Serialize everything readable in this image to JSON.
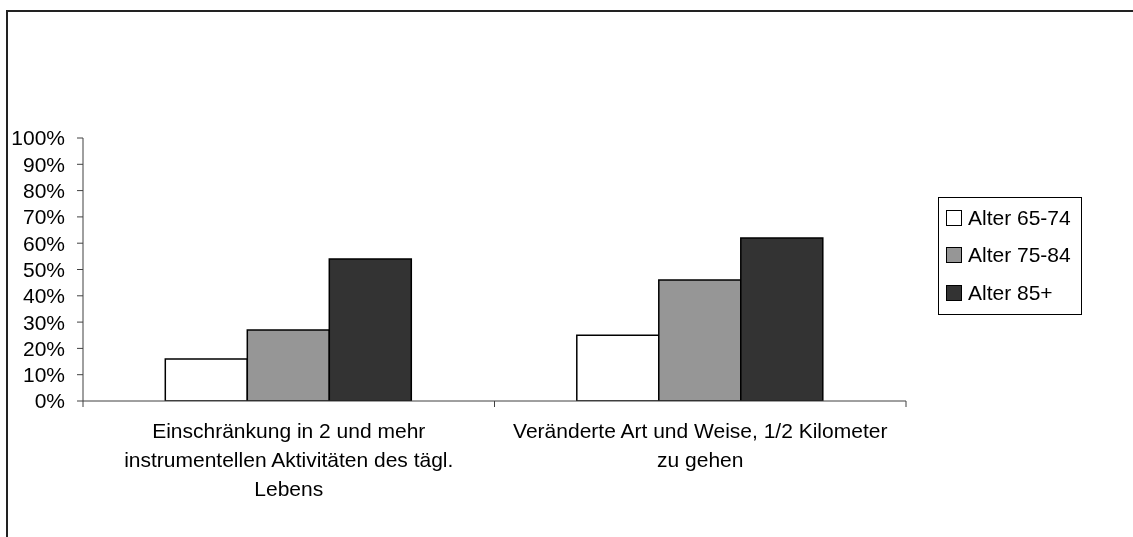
{
  "chart_data": {
    "type": "bar",
    "categories": [
      "Einschränkung in 2 und mehr instrumentellen Aktivitäten des tägl. Lebens",
      "Veränderte Art und Weise, 1/2 Kilometer zu gehen"
    ],
    "series": [
      {
        "name": "Alter 65-74",
        "color": "#ffffff",
        "values": [
          16,
          25
        ]
      },
      {
        "name": "Alter 75-84",
        "color": "#969696",
        "values": [
          27,
          46
        ]
      },
      {
        "name": "Alter 85+",
        "color": "#333333",
        "values": [
          54,
          62
        ]
      }
    ],
    "ylim": [
      0,
      100
    ],
    "yticks": [
      {
        "value": 0,
        "label": "0%"
      },
      {
        "value": 10,
        "label": "10%"
      },
      {
        "value": 20,
        "label": "20%"
      },
      {
        "value": 30,
        "label": "30%"
      },
      {
        "value": 40,
        "label": "40%"
      },
      {
        "value": 50,
        "label": "50%"
      },
      {
        "value": 60,
        "label": "60%"
      },
      {
        "value": 70,
        "label": "70%"
      },
      {
        "value": 80,
        "label": "80%"
      },
      {
        "value": 90,
        "label": "90%"
      },
      {
        "value": 100,
        "label": "100%"
      }
    ],
    "legend": "right"
  }
}
